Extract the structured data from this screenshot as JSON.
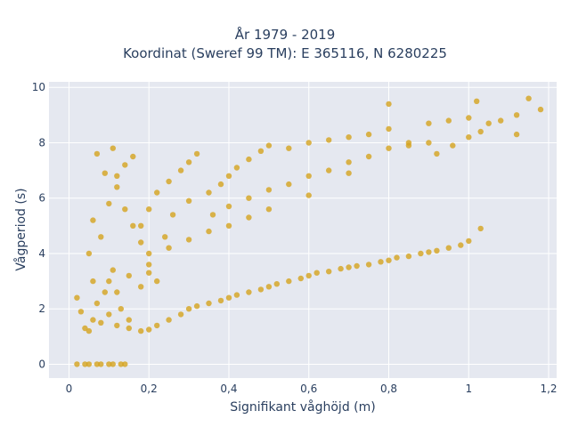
{
  "chart_data": {
    "type": "scatter",
    "title": [
      "År 1979 - 2019",
      "Koordinat (Sweref 99 TM): E 365116, N 6280225"
    ],
    "xlabel": "Signifikant våghöjd (m)",
    "ylabel": "Vågperiod (s)",
    "xlim": [
      -0.05,
      1.22
    ],
    "ylim": [
      -0.5,
      10.2
    ],
    "xticks": [
      0,
      0.2,
      0.4,
      0.6,
      0.8,
      1,
      1.2
    ],
    "xtick_labels": [
      "0",
      "0,2",
      "0,4",
      "0,6",
      "0,8",
      "1",
      "1,2"
    ],
    "yticks": [
      0,
      2,
      4,
      6,
      8,
      10
    ],
    "ytick_labels": [
      "0",
      "2",
      "4",
      "6",
      "8",
      "10"
    ],
    "grid": true,
    "legend": "none",
    "marker_color": "#d4a21e",
    "plot_background": "#e5e8f0",
    "series": [
      {
        "points": [
          [
            0.05,
            1.2
          ],
          [
            0.08,
            1.5
          ],
          [
            0.1,
            1.8
          ],
          [
            0.12,
            1.4
          ],
          [
            0.15,
            1.6
          ],
          [
            0.07,
            2.2
          ],
          [
            0.09,
            2.6
          ],
          [
            0.06,
            3.0
          ],
          [
            0.11,
            3.4
          ],
          [
            0.13,
            2.0
          ],
          [
            0.05,
            4.0
          ],
          [
            0.08,
            4.6
          ],
          [
            0.06,
            5.2
          ],
          [
            0.1,
            5.8
          ],
          [
            0.12,
            6.4
          ],
          [
            0.09,
            6.9
          ],
          [
            0.14,
            7.2
          ],
          [
            0.16,
            7.5
          ],
          [
            0.11,
            7.8
          ],
          [
            0.07,
            7.6
          ],
          [
            0.18,
            5.0
          ],
          [
            0.2,
            5.6
          ],
          [
            0.22,
            6.2
          ],
          [
            0.25,
            6.6
          ],
          [
            0.28,
            7.0
          ],
          [
            0.3,
            7.3
          ],
          [
            0.32,
            7.6
          ],
          [
            0.26,
            5.4
          ],
          [
            0.24,
            4.6
          ],
          [
            0.2,
            4.0
          ],
          [
            0.3,
            5.9
          ],
          [
            0.35,
            6.2
          ],
          [
            0.38,
            6.5
          ],
          [
            0.4,
            6.8
          ],
          [
            0.42,
            7.1
          ],
          [
            0.45,
            7.4
          ],
          [
            0.48,
            7.7
          ],
          [
            0.5,
            7.9
          ],
          [
            0.36,
            5.4
          ],
          [
            0.4,
            5.7
          ],
          [
            0.45,
            6.0
          ],
          [
            0.5,
            6.3
          ],
          [
            0.55,
            6.5
          ],
          [
            0.6,
            6.8
          ],
          [
            0.65,
            7.0
          ],
          [
            0.7,
            7.3
          ],
          [
            0.75,
            7.5
          ],
          [
            0.8,
            7.8
          ],
          [
            0.85,
            7.9
          ],
          [
            0.9,
            8.0
          ],
          [
            0.55,
            7.8
          ],
          [
            0.6,
            8.0
          ],
          [
            0.65,
            8.1
          ],
          [
            0.7,
            8.2
          ],
          [
            0.75,
            8.3
          ],
          [
            0.8,
            8.5
          ],
          [
            0.9,
            8.7
          ],
          [
            0.95,
            8.8
          ],
          [
            1.0,
            8.9
          ],
          [
            1.05,
            8.7
          ],
          [
            0.92,
            7.6
          ],
          [
            0.96,
            7.9
          ],
          [
            1.0,
            8.2
          ],
          [
            1.03,
            8.4
          ],
          [
            1.08,
            8.8
          ],
          [
            1.12,
            9.0
          ],
          [
            1.15,
            9.6
          ],
          [
            1.18,
            9.2
          ],
          [
            1.12,
            8.3
          ],
          [
            1.02,
            9.5
          ],
          [
            0.8,
            9.4
          ],
          [
            0.85,
            8.0
          ],
          [
            0.7,
            6.9
          ],
          [
            0.6,
            6.1
          ],
          [
            0.5,
            5.6
          ],
          [
            0.45,
            5.3
          ],
          [
            0.4,
            5.0
          ],
          [
            0.35,
            4.8
          ],
          [
            0.3,
            4.5
          ],
          [
            0.25,
            4.2
          ],
          [
            0.1,
            3.0
          ],
          [
            0.15,
            3.2
          ],
          [
            0.2,
            3.3
          ],
          [
            0.12,
            2.6
          ],
          [
            0.18,
            2.8
          ],
          [
            0.22,
            3.0
          ],
          [
            0.06,
            1.6
          ],
          [
            0.04,
            1.3
          ],
          [
            0.03,
            1.9
          ],
          [
            0.02,
            2.4
          ],
          [
            0.15,
            1.3
          ],
          [
            0.18,
            1.2
          ],
          [
            0.2,
            1.25
          ],
          [
            0.22,
            1.4
          ],
          [
            0.25,
            1.6
          ],
          [
            0.28,
            1.8
          ],
          [
            0.3,
            2.0
          ],
          [
            0.35,
            2.2
          ],
          [
            0.4,
            2.4
          ],
          [
            0.45,
            2.6
          ],
          [
            0.5,
            2.8
          ],
          [
            0.55,
            3.0
          ],
          [
            0.6,
            3.2
          ],
          [
            0.65,
            3.35
          ],
          [
            0.7,
            3.5
          ],
          [
            0.75,
            3.6
          ],
          [
            0.8,
            3.75
          ],
          [
            0.85,
            3.9
          ],
          [
            0.9,
            4.05
          ],
          [
            0.95,
            4.2
          ],
          [
            1.0,
            4.45
          ],
          [
            1.03,
            4.9
          ],
          [
            0.32,
            2.1
          ],
          [
            0.38,
            2.3
          ],
          [
            0.42,
            2.5
          ],
          [
            0.48,
            2.7
          ],
          [
            0.52,
            2.9
          ],
          [
            0.58,
            3.1
          ],
          [
            0.62,
            3.3
          ],
          [
            0.68,
            3.45
          ],
          [
            0.72,
            3.55
          ],
          [
            0.78,
            3.7
          ],
          [
            0.82,
            3.85
          ],
          [
            0.88,
            4.0
          ],
          [
            0.92,
            4.1
          ],
          [
            0.98,
            4.3
          ],
          [
            0.02,
            0
          ],
          [
            0.05,
            0
          ],
          [
            0.08,
            0
          ],
          [
            0.11,
            0
          ],
          [
            0.14,
            0
          ],
          [
            0.04,
            0
          ],
          [
            0.07,
            0
          ],
          [
            0.1,
            0
          ],
          [
            0.13,
            0
          ],
          [
            0.2,
            3.6
          ],
          [
            0.18,
            4.4
          ],
          [
            0.16,
            5.0
          ],
          [
            0.14,
            5.6
          ],
          [
            0.12,
            6.8
          ]
        ]
      }
    ]
  }
}
